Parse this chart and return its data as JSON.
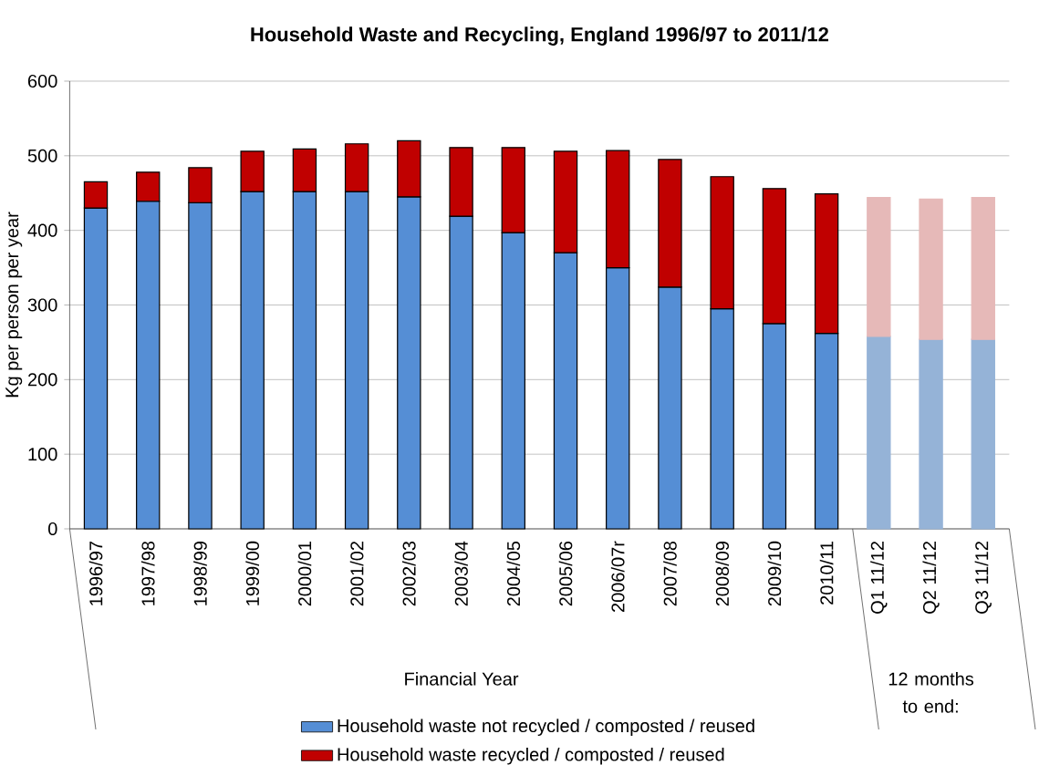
{
  "chart_data": {
    "type": "bar",
    "stacked": true,
    "title": "Household Waste and Recycling, England 1996/97 to 2011/12",
    "ylabel": "Kg per person per year",
    "categories": [
      "1996/97",
      "1997/98",
      "1998/99",
      "1999/00",
      "2000/01",
      "2001/02",
      "2002/03",
      "2003/04",
      "2004/05",
      "2005/06",
      "2006/07r",
      "2007/08",
      "2008/09",
      "2009/10",
      "2010/11",
      "Q1 11/12",
      "Q2 11/12",
      "Q3 11/12"
    ],
    "series": [
      {
        "name": "Household waste not recycled / composted / reused",
        "color": "#558ed5",
        "colors": [
          "#558ed5",
          "#558ed5",
          "#558ed5",
          "#558ed5",
          "#558ed5",
          "#558ed5",
          "#558ed5",
          "#558ed5",
          "#558ed5",
          "#558ed5",
          "#558ed5",
          "#558ed5",
          "#558ed5",
          "#558ed5",
          "#558ed5",
          "#95b3d7",
          "#95b3d7",
          "#95b3d7"
        ],
        "values": [
          430,
          439,
          437,
          452,
          452,
          452,
          445,
          419,
          397,
          370,
          350,
          324,
          295,
          275,
          262,
          258,
          254,
          254
        ]
      },
      {
        "name": "Household waste recycled / composted / reused",
        "color": "#c00000",
        "colors": [
          "#c00000",
          "#c00000",
          "#c00000",
          "#c00000",
          "#c00000",
          "#c00000",
          "#c00000",
          "#c00000",
          "#c00000",
          "#c00000",
          "#c00000",
          "#c00000",
          "#c00000",
          "#c00000",
          "#c00000",
          "#e6b9b8",
          "#e6b9b8",
          "#e6b9b8"
        ],
        "values": [
          35,
          39,
          47,
          54,
          57,
          64,
          75,
          92,
          114,
          136,
          157,
          171,
          177,
          181,
          187,
          186,
          188,
          190
        ]
      }
    ],
    "ylim": [
      0,
      600
    ],
    "yticks": [
      0,
      100,
      200,
      300,
      400,
      500,
      600
    ],
    "grid": "y",
    "legend": "bottom",
    "annotations": [
      "Financial Year",
      "12 months to end:"
    ]
  }
}
